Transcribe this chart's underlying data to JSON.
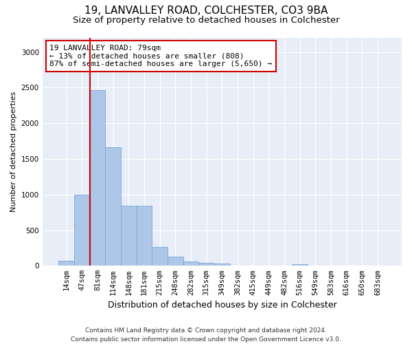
{
  "title1": "19, LANVALLEY ROAD, COLCHESTER, CO3 9BA",
  "title2": "Size of property relative to detached houses in Colchester",
  "xlabel": "Distribution of detached houses by size in Colchester",
  "ylabel": "Number of detached properties",
  "categories": [
    "14sqm",
    "47sqm",
    "81sqm",
    "114sqm",
    "148sqm",
    "181sqm",
    "215sqm",
    "248sqm",
    "282sqm",
    "315sqm",
    "349sqm",
    "382sqm",
    "415sqm",
    "449sqm",
    "482sqm",
    "516sqm",
    "549sqm",
    "583sqm",
    "616sqm",
    "650sqm",
    "683sqm"
  ],
  "values": [
    75,
    1000,
    2470,
    1660,
    840,
    840,
    260,
    130,
    60,
    45,
    30,
    5,
    0,
    0,
    0,
    25,
    0,
    0,
    0,
    0,
    0
  ],
  "bar_color": "#aec6e8",
  "bar_edgecolor": "#7ba7d4",
  "vline_color": "#cc0000",
  "annotation_text": "19 LANVALLEY ROAD: 79sqm\n← 13% of detached houses are smaller (808)\n87% of semi-detached houses are larger (5,650) →",
  "annotation_box_facecolor": "#ffffff",
  "annotation_box_edgecolor": "#cc0000",
  "ylim": [
    0,
    3200
  ],
  "yticks": [
    0,
    500,
    1000,
    1500,
    2000,
    2500,
    3000
  ],
  "figure_facecolor": "#ffffff",
  "axes_facecolor": "#e8eef7",
  "grid_color": "#ffffff",
  "footer": "Contains HM Land Registry data © Crown copyright and database right 2024.\nContains public sector information licensed under the Open Government Licence v3.0.",
  "title1_fontsize": 11,
  "title2_fontsize": 9.5,
  "xlabel_fontsize": 9,
  "ylabel_fontsize": 8,
  "tick_fontsize": 7.5,
  "annotation_fontsize": 8,
  "footer_fontsize": 6.5
}
